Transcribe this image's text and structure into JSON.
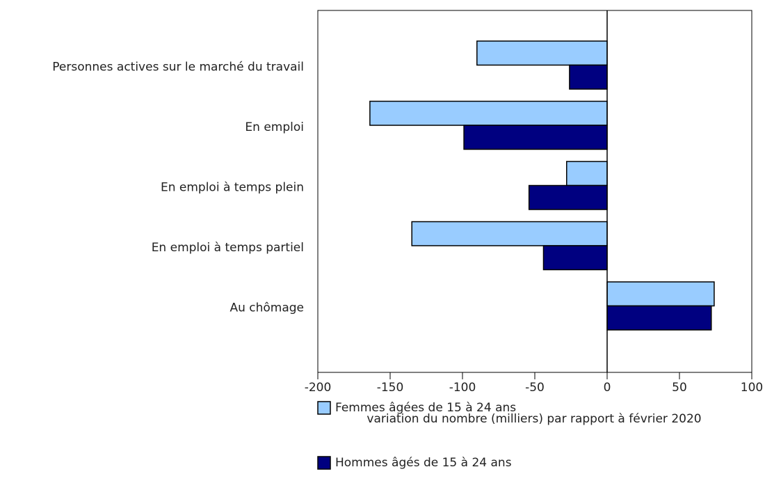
{
  "chart_data": {
    "type": "hbar",
    "categories": [
      "Personnes actives sur le marché du travail",
      "En emploi",
      "En emploi à temps plein",
      "En emploi à temps partiel",
      "Au chômage"
    ],
    "series": [
      {
        "name": "Femmes âgées de 15 à 24 ans",
        "color": "#99ccff",
        "values": [
          -90,
          -164,
          -28,
          -135,
          74
        ]
      },
      {
        "name": "Hommes âgés de 15 à 24 ans",
        "color": "#000080",
        "values": [
          -26,
          -99,
          -54,
          -44,
          72
        ]
      }
    ],
    "xlabel": "variation du nombre (milliers) par rapport à février 2020",
    "xlim": [
      -200,
      100
    ],
    "xticks": [
      -200,
      -150,
      -100,
      -50,
      0,
      50,
      100
    ]
  }
}
